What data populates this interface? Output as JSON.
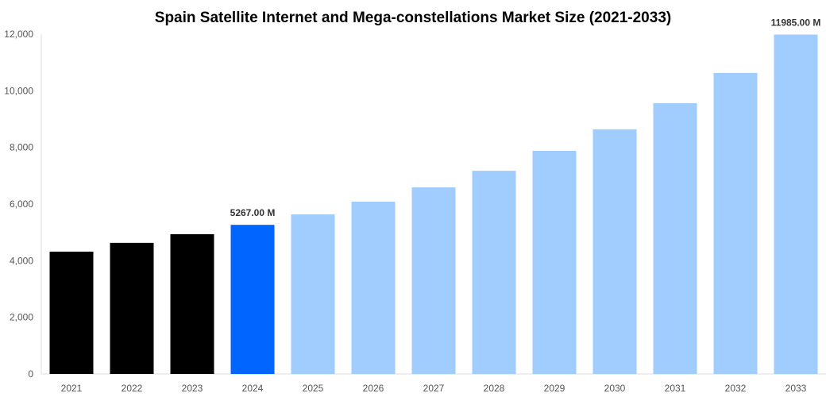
{
  "chart_data": {
    "type": "bar",
    "title": "Spain Satellite Internet and Mega-constellations Market Size (2021-2033)",
    "xlabel": "",
    "ylabel": "",
    "categories": [
      "2021",
      "2022",
      "2023",
      "2024",
      "2025",
      "2026",
      "2027",
      "2028",
      "2029",
      "2030",
      "2031",
      "2032",
      "2033"
    ],
    "values": [
      4320,
      4630,
      4935,
      5267,
      5635,
      6085,
      6590,
      7175,
      7880,
      8640,
      9560,
      10630,
      11985
    ],
    "bar_colors": [
      "#000000",
      "#000000",
      "#000000",
      "#0066ff",
      "#a0cdfd",
      "#a0cdfd",
      "#a0cdfd",
      "#a0cdfd",
      "#a0cdfd",
      "#a0cdfd",
      "#a0cdfd",
      "#a0cdfd",
      "#a0cdfd"
    ],
    "data_labels": {
      "2024": "5267.00 M",
      "2033": "11985.00 M"
    },
    "ylim": [
      0,
      12000
    ],
    "yticks": [
      0,
      2000,
      4000,
      6000,
      8000,
      10000,
      12000
    ],
    "ytick_labels": [
      "0",
      "2,000",
      "4,000",
      "6,000",
      "8,000",
      "10,000",
      "12,000"
    ],
    "grid": false,
    "legend": "none"
  }
}
